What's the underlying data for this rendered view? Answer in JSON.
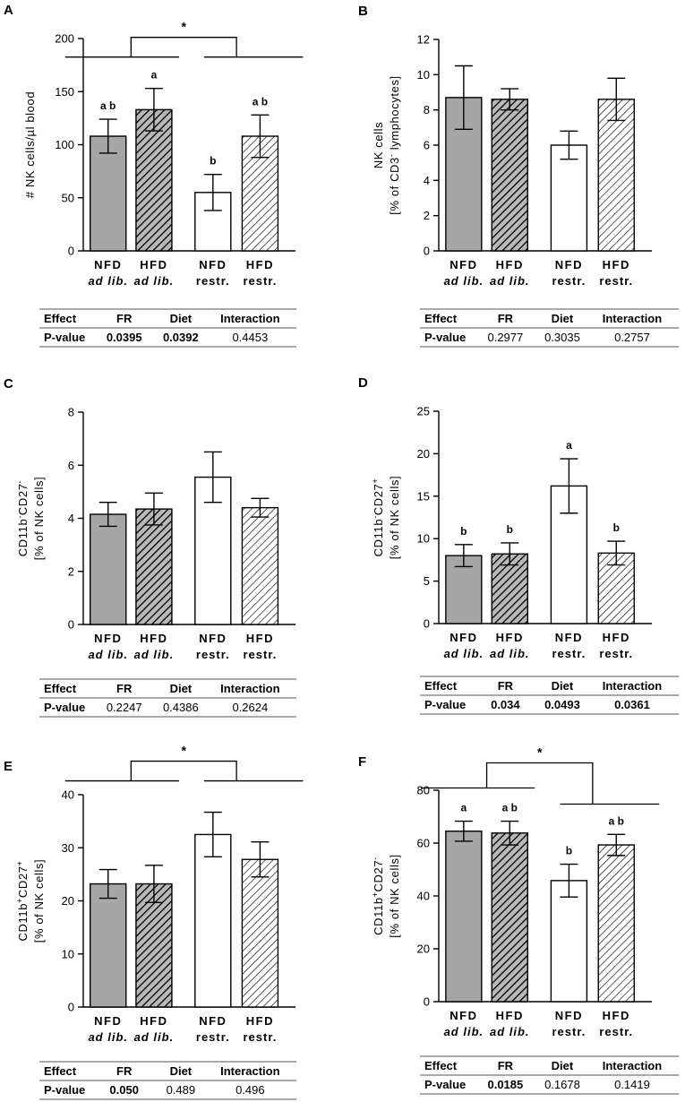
{
  "colors": {
    "gray": "#a6a6a6",
    "hatch_fill": "#b8b8b8",
    "white": "#ffffff",
    "black": "#000000",
    "table_line": "#555555"
  },
  "chart_data": [
    {
      "panel": "A",
      "type": "bar",
      "categories": [
        [
          "NFD",
          "ad lib."
        ],
        [
          "HFD",
          "ad lib."
        ],
        [
          "NFD",
          "restr."
        ],
        [
          "HFD",
          "restr."
        ]
      ],
      "styles": [
        "gray",
        "hatch",
        "white",
        "hatch-light"
      ],
      "values": [
        108,
        133,
        55,
        108
      ],
      "errors": [
        16,
        20,
        17,
        20
      ],
      "letters": [
        "a b",
        "a",
        "b",
        "a b"
      ],
      "ylabel": [
        "# NK cells/µl blood"
      ],
      "ylim": [
        0,
        200
      ],
      "yticks": [
        0,
        50,
        100,
        150,
        200
      ],
      "significance": {
        "label": "*",
        "type": "bracket",
        "between": [
          [
            0,
            1
          ],
          [
            2,
            3
          ]
        ]
      },
      "table": {
        "headers": [
          "Effect",
          "FR",
          "Diet",
          "Interaction"
        ],
        "label": "P-value",
        "values": [
          "0.0395",
          "0.0392",
          "0.4453"
        ]
      }
    },
    {
      "panel": "B",
      "type": "bar",
      "categories": [
        [
          "NFD",
          "ad lib."
        ],
        [
          "HFD",
          "ad lib."
        ],
        [
          "NFD",
          "restr."
        ],
        [
          "HFD",
          "restr."
        ]
      ],
      "styles": [
        "gray",
        "hatch",
        "white",
        "hatch-light"
      ],
      "values": [
        8.7,
        8.6,
        6.0,
        8.6
      ],
      "errors": [
        1.8,
        0.6,
        0.8,
        1.2
      ],
      "letters": [
        "",
        "",
        "",
        ""
      ],
      "ylabel": [
        "NK cells",
        "[% of CD3⁻ lymphocytes]"
      ],
      "ylim": [
        0,
        12
      ],
      "yticks": [
        0,
        2,
        4,
        6,
        8,
        10,
        12
      ],
      "significance": null,
      "table": {
        "headers": [
          "Effect",
          "FR",
          "Diet",
          "Interaction"
        ],
        "label": "P-value",
        "values": [
          "0.2977",
          "0.3035",
          "0.2757"
        ]
      }
    },
    {
      "panel": "C",
      "type": "bar",
      "categories": [
        [
          "NFD",
          "ad lib."
        ],
        [
          "HFD",
          "ad lib."
        ],
        [
          "NFD",
          "restr."
        ],
        [
          "HFD",
          "restr."
        ]
      ],
      "styles": [
        "gray",
        "hatch",
        "white",
        "hatch-light"
      ],
      "values": [
        4.15,
        4.35,
        5.55,
        4.4
      ],
      "errors": [
        0.45,
        0.6,
        0.95,
        0.35
      ],
      "letters": [
        "",
        "",
        "",
        ""
      ],
      "ylabel": [
        "CD11b⁻CD27⁻",
        "[% of NK cells]"
      ],
      "ylim": [
        0,
        8
      ],
      "yticks": [
        0,
        2,
        4,
        6,
        8
      ],
      "significance": null,
      "table": {
        "headers": [
          "Effect",
          "FR",
          "Diet",
          "Interaction"
        ],
        "label": "P-value",
        "values": [
          "0.2247",
          "0.4386",
          "0.2624"
        ]
      }
    },
    {
      "panel": "D",
      "type": "bar",
      "categories": [
        [
          "NFD",
          "ad lib."
        ],
        [
          "HFD",
          "ad lib."
        ],
        [
          "NFD",
          "restr."
        ],
        [
          "HFD",
          "restr."
        ]
      ],
      "styles": [
        "gray",
        "hatch",
        "white",
        "hatch-light"
      ],
      "values": [
        8.0,
        8.2,
        16.2,
        8.3
      ],
      "errors": [
        1.3,
        1.3,
        3.2,
        1.4
      ],
      "letters": [
        "b",
        "b",
        "a",
        "b"
      ],
      "ylabel": [
        "CD11b⁻CD27⁺",
        "[% of NK cells]"
      ],
      "ylim": [
        0,
        25
      ],
      "yticks": [
        0,
        5,
        10,
        15,
        20,
        25
      ],
      "significance": null,
      "table": {
        "headers": [
          "Effect",
          "FR",
          "Diet",
          "Interaction"
        ],
        "label": "P-value",
        "values": [
          "0.034",
          "0.0493",
          "0.0361"
        ]
      }
    },
    {
      "panel": "E",
      "type": "bar",
      "categories": [
        [
          "NFD",
          "ad lib."
        ],
        [
          "HFD",
          "ad lib."
        ],
        [
          "NFD",
          "restr."
        ],
        [
          "HFD",
          "restr."
        ]
      ],
      "styles": [
        "gray",
        "hatch",
        "white",
        "hatch-light"
      ],
      "values": [
        23.2,
        23.2,
        32.5,
        27.8
      ],
      "errors": [
        2.7,
        3.5,
        4.2,
        3.3
      ],
      "letters": [
        "",
        "",
        "",
        ""
      ],
      "ylabel": [
        "CD11b⁺CD27⁺",
        "[% of NK cells]"
      ],
      "ylim": [
        0,
        40
      ],
      "yticks": [
        0,
        10,
        20,
        30,
        40
      ],
      "significance": {
        "label": "*",
        "type": "bracket",
        "between": [
          [
            0,
            1
          ],
          [
            2,
            3
          ]
        ]
      },
      "table": {
        "headers": [
          "Effect",
          "FR",
          "Diet",
          "Interaction"
        ],
        "label": "P-value",
        "values": [
          "0.050",
          "0.489",
          "0.496"
        ]
      }
    },
    {
      "panel": "F",
      "type": "bar",
      "categories": [
        [
          "NFD",
          "ad lib."
        ],
        [
          "HFD",
          "ad lib."
        ],
        [
          "NFD",
          "restr."
        ],
        [
          "HFD",
          "restr."
        ]
      ],
      "styles": [
        "gray",
        "hatch",
        "white",
        "hatch-light"
      ],
      "values": [
        64.5,
        63.8,
        45.8,
        59.3
      ],
      "errors": [
        3.8,
        4.5,
        6.2,
        4.0
      ],
      "letters": [
        "a",
        "a b",
        "b",
        "a b"
      ],
      "ylabel": [
        "CD11b⁺CD27⁻",
        "[% of NK cells]"
      ],
      "ylim": [
        0,
        80
      ],
      "yticks": [
        0,
        20,
        40,
        60,
        80
      ],
      "significance": {
        "label": "*",
        "type": "bracket",
        "between": [
          [
            0,
            1
          ],
          [
            2,
            3
          ]
        ]
      },
      "table": {
        "headers": [
          "Effect",
          "FR",
          "Diet",
          "Interaction"
        ],
        "label": "P-value",
        "values": [
          "0.0185",
          "0.1678",
          "0.1419"
        ]
      }
    }
  ]
}
